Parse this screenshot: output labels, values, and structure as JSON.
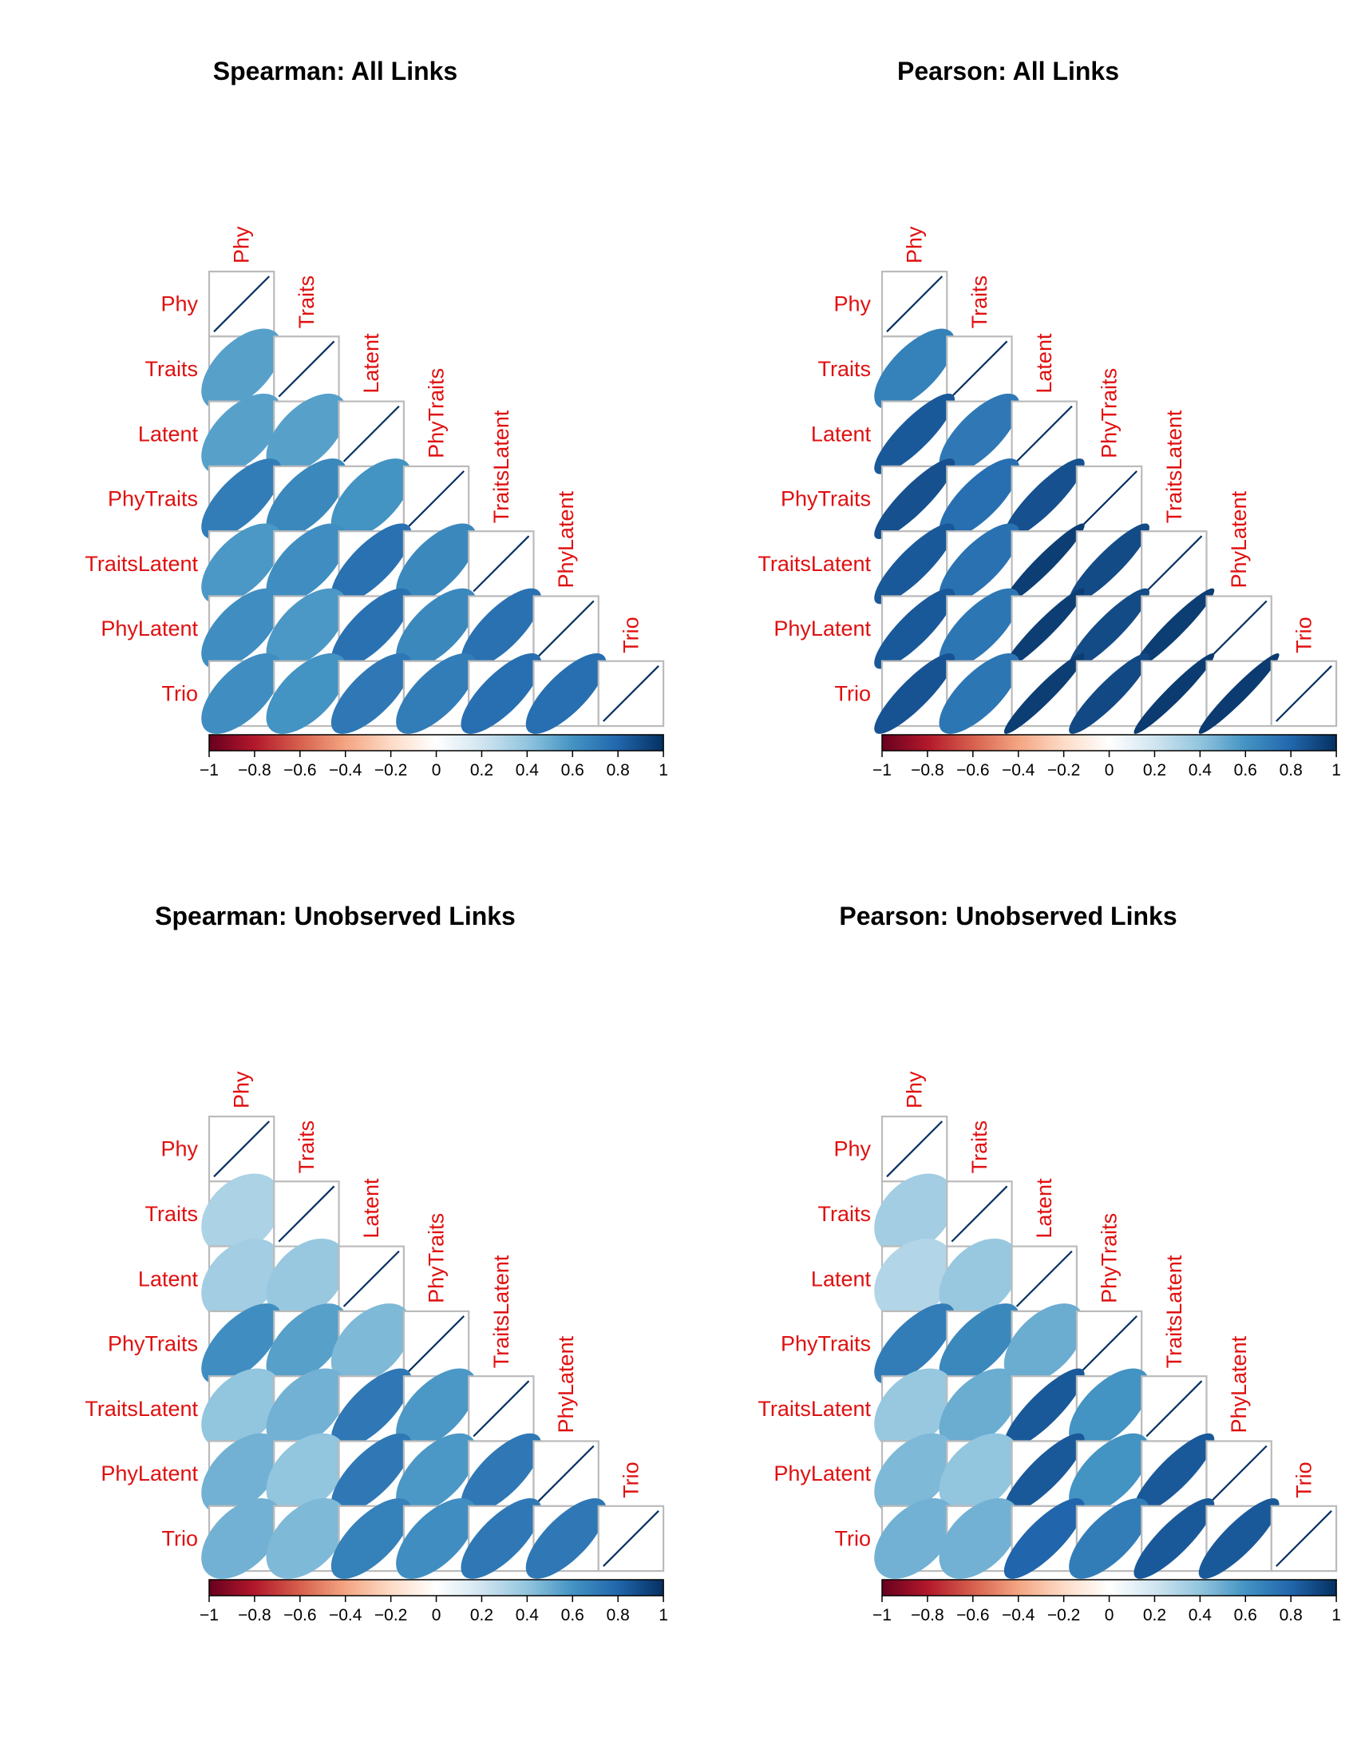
{
  "colors": {
    "label": "#e01010",
    "grid": "#bbbbbb",
    "scale": [
      "#67001f",
      "#b2182b",
      "#d6604d",
      "#f4a582",
      "#fddbc7",
      "#ffffff",
      "#d1e5f0",
      "#92c5de",
      "#4393c3",
      "#2166ac",
      "#053061"
    ]
  },
  "chart_data": [
    {
      "type": "heatmap",
      "method": "ellipse",
      "title": "Spearman: All Links",
      "variables": [
        "Phy",
        "Traits",
        "Latent",
        "PhyTraits",
        "TraitsLatent",
        "PhyLatent",
        "Trio"
      ],
      "matrix": [
        [
          1.0
        ],
        [
          0.55,
          1.0
        ],
        [
          0.55,
          0.55,
          1.0
        ],
        [
          0.7,
          0.65,
          0.6,
          1.0
        ],
        [
          0.58,
          0.62,
          0.75,
          0.65,
          1.0
        ],
        [
          0.62,
          0.58,
          0.75,
          0.65,
          0.75,
          1.0
        ],
        [
          0.62,
          0.6,
          0.72,
          0.7,
          0.76,
          0.76,
          1.0
        ]
      ],
      "colorbar": {
        "ticks": [
          "−1",
          "−0.8",
          "−0.6",
          "−0.4",
          "−0.2",
          "0",
          "0.2",
          "0.4",
          "0.6",
          "0.8",
          "1"
        ],
        "range": [
          -1,
          1
        ]
      }
    },
    {
      "type": "heatmap",
      "method": "ellipse",
      "title": "Pearson: All Links",
      "variables": [
        "Phy",
        "Traits",
        "Latent",
        "PhyTraits",
        "TraitsLatent",
        "PhyLatent",
        "Trio"
      ],
      "matrix": [
        [
          1.0
        ],
        [
          0.68,
          1.0
        ],
        [
          0.85,
          0.72,
          1.0
        ],
        [
          0.88,
          0.76,
          0.88,
          1.0
        ],
        [
          0.85,
          0.75,
          0.95,
          0.9,
          1.0
        ],
        [
          0.85,
          0.73,
          0.95,
          0.9,
          0.95,
          1.0
        ],
        [
          0.87,
          0.73,
          0.95,
          0.91,
          0.96,
          0.96,
          1.0
        ]
      ],
      "colorbar": {
        "ticks": [
          "−1",
          "−0.8",
          "−0.6",
          "−0.4",
          "−0.2",
          "0",
          "0.2",
          "0.4",
          "0.6",
          "0.8",
          "1"
        ],
        "range": [
          -1,
          1
        ]
      }
    },
    {
      "type": "heatmap",
      "method": "ellipse",
      "title": "Spearman: Unobserved Links",
      "variables": [
        "Phy",
        "Traits",
        "Latent",
        "PhyTraits",
        "TraitsLatent",
        "PhyLatent",
        "Trio"
      ],
      "matrix": [
        [
          1.0
        ],
        [
          0.32,
          1.0
        ],
        [
          0.35,
          0.38,
          1.0
        ],
        [
          0.62,
          0.55,
          0.45,
          1.0
        ],
        [
          0.4,
          0.48,
          0.72,
          0.58,
          1.0
        ],
        [
          0.48,
          0.4,
          0.72,
          0.58,
          0.72,
          1.0
        ],
        [
          0.48,
          0.45,
          0.68,
          0.62,
          0.72,
          0.72,
          1.0
        ]
      ],
      "colorbar": {
        "ticks": [
          "−1",
          "−0.8",
          "−0.6",
          "−0.4",
          "−0.2",
          "0",
          "0.2",
          "0.4",
          "0.6",
          "0.8",
          "1"
        ],
        "range": [
          -1,
          1
        ]
      }
    },
    {
      "type": "heatmap",
      "method": "ellipse",
      "title": "Pearson: Unobserved Links",
      "variables": [
        "Phy",
        "Traits",
        "Latent",
        "PhyTraits",
        "TraitsLatent",
        "PhyLatent",
        "Trio"
      ],
      "matrix": [
        [
          1.0
        ],
        [
          0.35,
          1.0
        ],
        [
          0.3,
          0.38,
          1.0
        ],
        [
          0.7,
          0.65,
          0.5,
          1.0
        ],
        [
          0.38,
          0.5,
          0.85,
          0.6,
          1.0
        ],
        [
          0.45,
          0.4,
          0.85,
          0.6,
          0.85,
          1.0
        ],
        [
          0.48,
          0.48,
          0.8,
          0.7,
          0.85,
          0.85,
          1.0
        ]
      ],
      "colorbar": {
        "ticks": [
          "−1",
          "−0.8",
          "−0.6",
          "−0.4",
          "−0.2",
          "0",
          "0.2",
          "0.4",
          "0.6",
          "0.8",
          "1"
        ],
        "range": [
          -1,
          1
        ]
      }
    }
  ]
}
